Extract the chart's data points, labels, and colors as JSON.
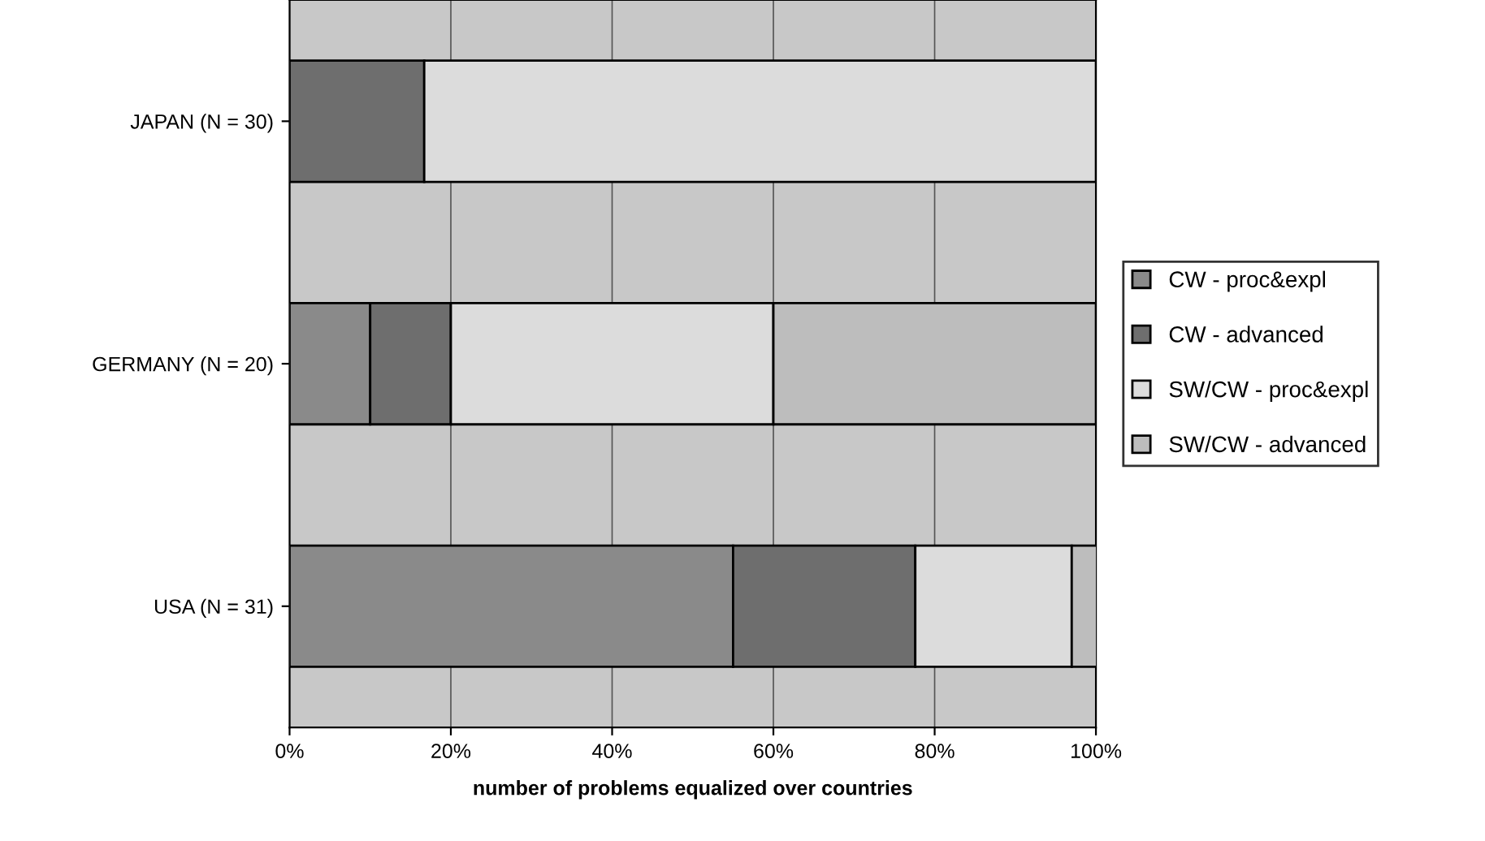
{
  "chart_data": {
    "type": "bar",
    "orientation": "horizontal",
    "stacked": true,
    "xlabel": "number of problems equalized over countries",
    "categories": [
      "JAPAN (N = 30)",
      "GERMANY (N = 20)",
      "USA (N = 31)"
    ],
    "series": [
      {
        "name": "CW - proc&expl",
        "color": "#8a8a8a",
        "values": [
          0,
          10,
          55
        ]
      },
      {
        "name": "CW - advanced",
        "color": "#6e6e6e",
        "values": [
          16.7,
          10,
          22.6
        ]
      },
      {
        "name": "SW/CW - proc&expl",
        "color": "#dcdcdc",
        "values": [
          83.3,
          40,
          19.4
        ]
      },
      {
        "name": "SW/CW - advanced",
        "color": "#bdbdbd",
        "values": [
          0,
          40,
          3.2
        ]
      }
    ],
    "xlim": [
      0,
      100
    ],
    "xticks": [
      {
        "value": 0,
        "label": "0%"
      },
      {
        "value": 20,
        "label": "20%"
      },
      {
        "value": 40,
        "label": "40%"
      },
      {
        "value": 60,
        "label": "60%"
      },
      {
        "value": 80,
        "label": "80%"
      },
      {
        "value": 100,
        "label": "100%"
      }
    ],
    "grid": "x",
    "legend": "right"
  }
}
